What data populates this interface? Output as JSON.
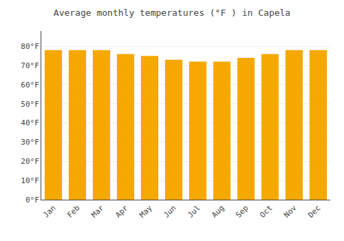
{
  "chart_data": {
    "type": "bar",
    "title": "Average monthly temperatures (°F ) in Capela",
    "categories": [
      "Jan",
      "Feb",
      "Mar",
      "Apr",
      "May",
      "Jun",
      "Jul",
      "Aug",
      "Sep",
      "Oct",
      "Nov",
      "Dec"
    ],
    "values": [
      78,
      78,
      78,
      76,
      75,
      73,
      72,
      72,
      74,
      76,
      78,
      78
    ],
    "color": "#F5A800",
    "ylim": [
      0,
      88
    ],
    "yticks": [
      {
        "value": 0,
        "label": "0°F"
      },
      {
        "value": 10,
        "label": "10°F"
      },
      {
        "value": 20,
        "label": "20°F"
      },
      {
        "value": 30,
        "label": "30°F"
      },
      {
        "value": 40,
        "label": "40°F"
      },
      {
        "value": 50,
        "label": "50°F"
      },
      {
        "value": 60,
        "label": "60°F"
      },
      {
        "value": 70,
        "label": "70°F"
      },
      {
        "value": 80,
        "label": "80°F"
      }
    ],
    "grid": true
  }
}
